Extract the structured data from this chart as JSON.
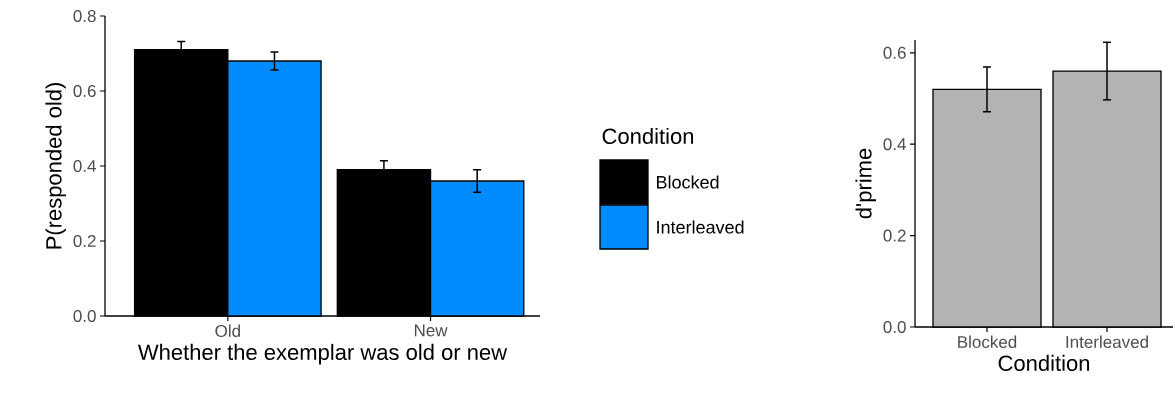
{
  "chart_data": [
    {
      "type": "bar",
      "categories": [
        "Old",
        "New"
      ],
      "xlabel": "Whether the exemplar was old or new",
      "ylabel": "P(responded old)",
      "legend_title": "Condition",
      "legend": "right",
      "ylim": [
        0,
        0.8
      ],
      "yticks": [
        {
          "value": 0,
          "label": "0.0"
        },
        {
          "value": 0.2,
          "label": "0.2"
        },
        {
          "value": 0.4,
          "label": "0.4"
        },
        {
          "value": 0.6,
          "label": "0.6"
        },
        {
          "value": 0.8,
          "label": "0.8"
        }
      ],
      "series": [
        {
          "name": "Blocked",
          "color": "#000000",
          "values": [
            0.71,
            0.39
          ],
          "errors": [
            0.022,
            0.024
          ]
        },
        {
          "name": "Interleaved",
          "color": "#008cff",
          "values": [
            0.68,
            0.36
          ],
          "errors": [
            0.024,
            0.03
          ]
        }
      ]
    },
    {
      "type": "bar",
      "categories": [
        "Blocked",
        "Interleaved"
      ],
      "xlabel": "Condition",
      "ylabel": "d'prime",
      "ylim": [
        0,
        0.628
      ],
      "yticks": [
        {
          "value": 0,
          "label": "0.0"
        },
        {
          "value": 0.2,
          "label": "0.2"
        },
        {
          "value": 0.4,
          "label": "0.4"
        },
        {
          "value": 0.6,
          "label": "0.6"
        }
      ],
      "color": "#b3b3b3",
      "values": [
        0.52,
        0.56
      ],
      "errors": [
        0.049,
        0.063
      ]
    }
  ]
}
